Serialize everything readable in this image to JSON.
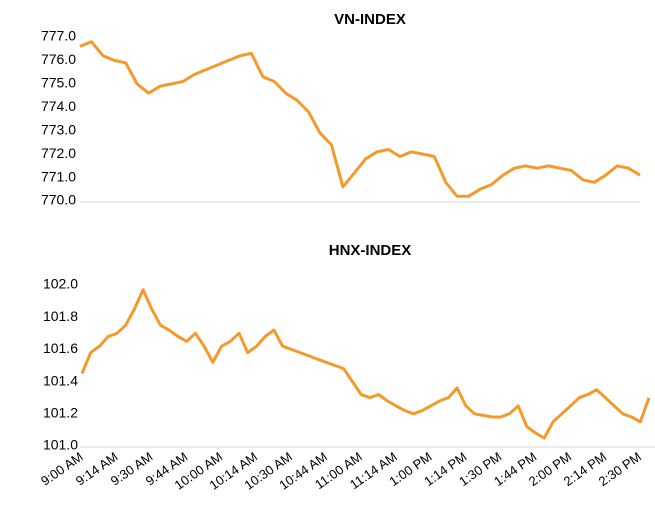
{
  "chart_data": [
    {
      "type": "line",
      "title": "VN-INDEX",
      "color": "#f39a2b",
      "grid": false,
      "ylim": [
        770,
        777
      ],
      "yticks": [
        {
          "value": 770,
          "label": "770.0"
        },
        {
          "value": 771,
          "label": "771.0"
        },
        {
          "value": 772,
          "label": "772.0"
        },
        {
          "value": 773,
          "label": "773.0"
        },
        {
          "value": 774,
          "label": "774.0"
        },
        {
          "value": 775,
          "label": "775.0"
        },
        {
          "value": 776,
          "label": "776.0"
        },
        {
          "value": 777,
          "label": "777.0"
        }
      ],
      "values": [
        776.6,
        776.8,
        776.2,
        776.0,
        775.9,
        775.0,
        774.6,
        774.9,
        775.0,
        775.1,
        775.4,
        775.6,
        775.8,
        776.0,
        776.2,
        776.3,
        775.3,
        775.1,
        774.6,
        774.3,
        773.8,
        772.9,
        772.4,
        770.6,
        771.2,
        771.8,
        772.1,
        772.2,
        771.9,
        772.1,
        772.0,
        771.9,
        770.8,
        770.2,
        770.2,
        770.5,
        770.7,
        771.1,
        771.4,
        771.5,
        771.4,
        771.5,
        771.4,
        771.3,
        770.9,
        770.8,
        771.1,
        771.5,
        771.4,
        771.1
      ]
    },
    {
      "type": "line",
      "title": "HNX-INDEX",
      "color": "#f39a2b",
      "grid": false,
      "ylim": [
        101,
        102
      ],
      "yticks": [
        {
          "value": 101,
          "label": "101.0"
        },
        101.2,
        101.4,
        101.6,
        101.8,
        {
          "value": 102,
          "label": "102.0"
        }
      ],
      "categories": [
        "9:00 AM",
        null,
        null,
        null,
        "9:14 AM",
        null,
        null,
        null,
        "9:30 AM",
        null,
        null,
        null,
        "9:44 AM",
        null,
        null,
        null,
        "10:00 AM",
        null,
        null,
        null,
        "10:14 AM",
        null,
        null,
        null,
        "10:30 AM",
        null,
        null,
        null,
        "10:44 AM",
        null,
        null,
        null,
        "11:00 AM",
        null,
        null,
        null,
        "11:14 AM",
        null,
        null,
        null,
        "1:00 PM",
        null,
        null,
        null,
        "1:14 PM",
        null,
        null,
        null,
        "1:30 PM",
        null,
        null,
        null,
        "1:44 PM",
        null,
        null,
        null,
        "2:00 PM",
        null,
        null,
        null,
        "2:14 PM",
        null,
        null,
        null,
        "2:30 PM",
        null
      ],
      "values": [
        101.45,
        101.58,
        101.62,
        101.68,
        101.7,
        101.75,
        101.85,
        101.97,
        101.85,
        101.75,
        101.72,
        101.68,
        101.65,
        101.7,
        101.62,
        101.52,
        101.62,
        101.65,
        101.7,
        101.58,
        101.62,
        101.68,
        101.72,
        101.62,
        101.6,
        101.58,
        101.56,
        101.54,
        101.52,
        101.5,
        101.48,
        101.4,
        101.32,
        101.3,
        101.32,
        101.28,
        101.25,
        101.22,
        101.2,
        101.22,
        101.25,
        101.28,
        101.3,
        101.36,
        101.25,
        101.2,
        101.19,
        101.18,
        101.18,
        101.2,
        101.25,
        101.12,
        101.08,
        101.05,
        101.15,
        101.2,
        101.25,
        101.3,
        101.32,
        101.35,
        101.3,
        101.25,
        101.2,
        101.18,
        101.15,
        101.3
      ]
    }
  ]
}
